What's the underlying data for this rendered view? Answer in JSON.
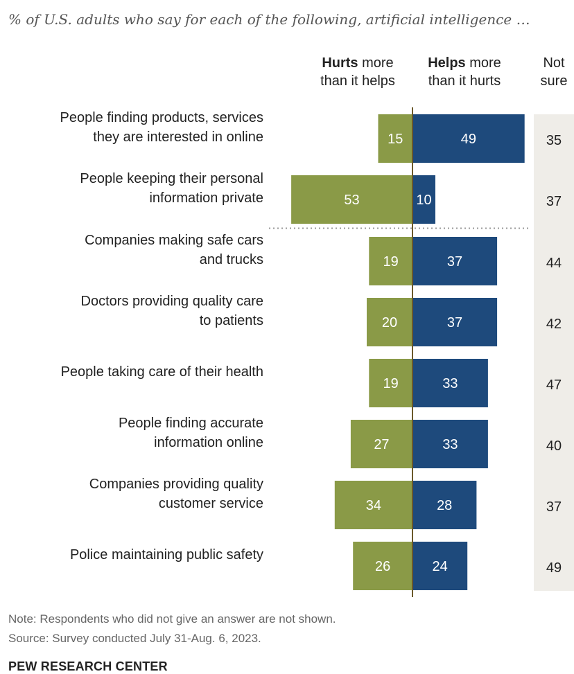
{
  "subtitle": "% of U.S. adults who say for each of the following, artificial intelligence …",
  "columns": {
    "hurts_bold": "Hurts",
    "hurts_rest1": " more",
    "hurts_rest2": "than it helps",
    "helps_bold": "Helps",
    "helps_rest1": " more",
    "helps_rest2": "than it hurts",
    "notsure1": "Not",
    "notsure2": "sure"
  },
  "colors": {
    "hurts": "#8a9a47",
    "helps": "#1e4a7c",
    "axis": "#6b5a2a",
    "band": "#efede8"
  },
  "chart_data": {
    "type": "bar",
    "orientation": "horizontal-diverging",
    "categories": [
      [
        "People finding products, services",
        "they are interested in online"
      ],
      [
        "People keeping their personal",
        "information private"
      ],
      [
        "Companies making safe cars",
        "and trucks"
      ],
      [
        "Doctors providing quality care",
        "to patients"
      ],
      [
        "People taking care of their health"
      ],
      [
        "People finding accurate",
        "information online"
      ],
      [
        "Companies providing quality",
        "customer service"
      ],
      [
        "Police maintaining public safety"
      ]
    ],
    "series": [
      {
        "name": "Hurts more than it helps",
        "values": [
          15,
          53,
          19,
          20,
          19,
          27,
          34,
          26
        ]
      },
      {
        "name": "Helps more than it hurts",
        "values": [
          49,
          10,
          37,
          37,
          33,
          33,
          28,
          24
        ]
      },
      {
        "name": "Not sure",
        "values": [
          35,
          37,
          44,
          42,
          47,
          40,
          37,
          49
        ]
      }
    ],
    "divider_after_index": 1
  },
  "footer": {
    "note": "Note: Respondents who did not give an answer are not shown.",
    "source": "Source: Survey conducted July 31-Aug. 6, 2023.",
    "brand": "PEW RESEARCH CENTER"
  }
}
